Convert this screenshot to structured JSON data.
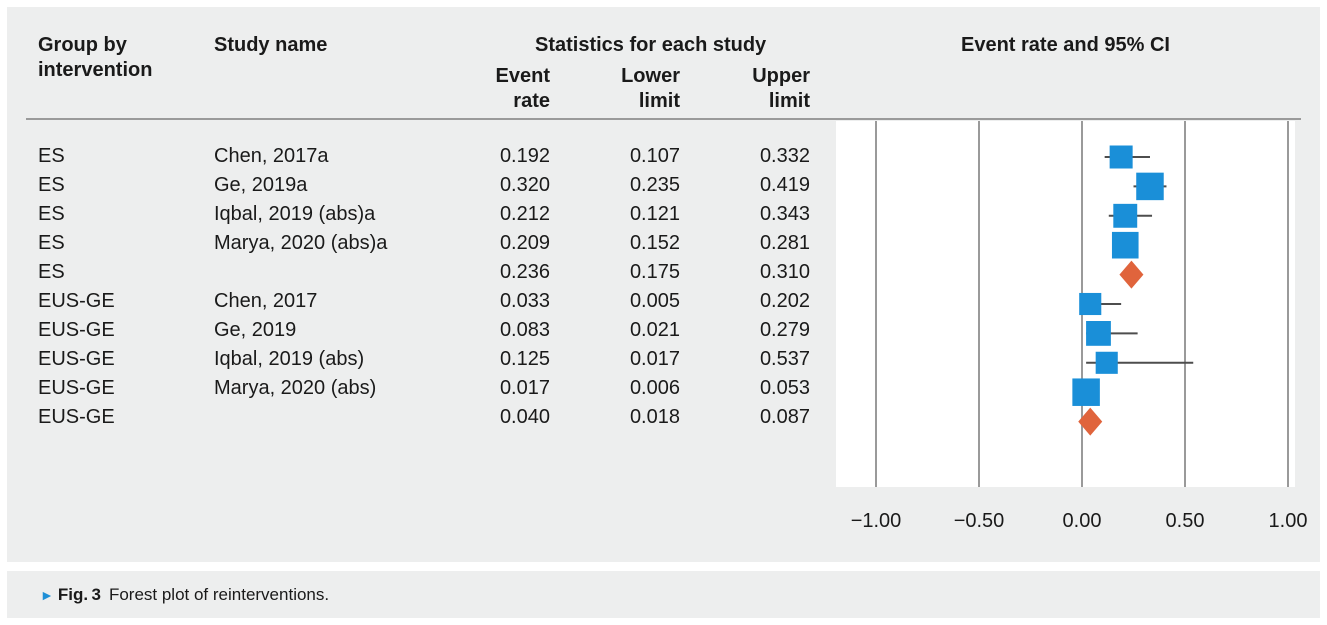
{
  "headers": {
    "group": [
      "Group by",
      "intervention"
    ],
    "study": "Study name",
    "stats": "Statistics for each study",
    "event_rate": [
      "Event",
      "rate"
    ],
    "lower": [
      "Lower",
      "limit"
    ],
    "upper": [
      "Upper",
      "limit"
    ],
    "plot": "Event rate and 95% CI"
  },
  "rows": [
    {
      "group": "ES",
      "study": "Chen, 2017a",
      "event_rate": "0.192",
      "lower": "0.107",
      "upper": "0.332"
    },
    {
      "group": "ES",
      "study": "Ge, 2019a",
      "event_rate": "0.320",
      "lower": "0.235",
      "upper": "0.419"
    },
    {
      "group": "ES",
      "study": "Iqbal, 2019 (abs)a",
      "event_rate": "0.212",
      "lower": "0.121",
      "upper": "0.343"
    },
    {
      "group": "ES",
      "study": "Marya, 2020 (abs)a",
      "event_rate": "0.209",
      "lower": "0.152",
      "upper": "0.281"
    },
    {
      "group": "ES",
      "study": "",
      "event_rate": "0.236",
      "lower": "0.175",
      "upper": "0.310"
    },
    {
      "group": "EUS-GE",
      "study": "Chen, 2017",
      "event_rate": "0.033",
      "lower": "0.005",
      "upper": "0.202"
    },
    {
      "group": "EUS-GE",
      "study": "Ge, 2019",
      "event_rate": "0.083",
      "lower": "0.021",
      "upper": "0.279"
    },
    {
      "group": "EUS-GE",
      "study": "Iqbal, 2019 (abs)",
      "event_rate": "0.125",
      "lower": "0.017",
      "upper": "0.537"
    },
    {
      "group": "EUS-GE",
      "study": "Marya, 2020 (abs)",
      "event_rate": "0.017",
      "lower": "0.006",
      "upper": "0.053"
    },
    {
      "group": "EUS-GE",
      "study": "",
      "event_rate": "0.040",
      "lower": "0.018",
      "upper": "0.087"
    }
  ],
  "chart_data": {
    "type": "forest",
    "xlim": [
      -1.0,
      1.0
    ],
    "x_ticks": [
      "−1.00",
      "−0.50",
      "0.00",
      "0.50",
      "1.00"
    ],
    "x_tick_values": [
      -1.0,
      -0.5,
      0.0,
      0.5,
      1.0
    ],
    "grid": "vertical",
    "colors": {
      "study_square": "#1a8fd8",
      "summary_diamond": "#e0643c",
      "ci_line": "#4d4d4d",
      "grid": "#9a9a9a"
    },
    "markers": [
      {
        "kind": "square",
        "x": 0.19,
        "ci": [
          0.11,
          0.33
        ],
        "weight": 0.5
      },
      {
        "kind": "square",
        "x": 0.33,
        "ci": [
          0.25,
          0.41
        ],
        "weight": 0.75
      },
      {
        "kind": "square",
        "x": 0.21,
        "ci": [
          0.13,
          0.34
        ],
        "weight": 0.55
      },
      {
        "kind": "square",
        "x": 0.21,
        "ci": [
          0.16,
          0.27
        ],
        "weight": 0.7
      },
      {
        "kind": "diamond",
        "x": 0.24,
        "ci": [
          0.18,
          0.3
        ]
      },
      {
        "kind": "square",
        "x": 0.04,
        "ci": [
          0.01,
          0.19
        ],
        "weight": 0.45
      },
      {
        "kind": "square",
        "x": 0.08,
        "ci": [
          0.02,
          0.27
        ],
        "weight": 0.6
      },
      {
        "kind": "square",
        "x": 0.12,
        "ci": [
          0.02,
          0.54
        ],
        "weight": 0.45
      },
      {
        "kind": "square",
        "x": 0.02,
        "ci": [
          0.01,
          0.05
        ],
        "weight": 0.75
      },
      {
        "kind": "diamond",
        "x": 0.04,
        "ci": [
          0.02,
          0.09
        ]
      }
    ]
  },
  "caption": {
    "arrow": "►",
    "label": "Fig. 3",
    "text": "Forest plot of reinterventions."
  }
}
